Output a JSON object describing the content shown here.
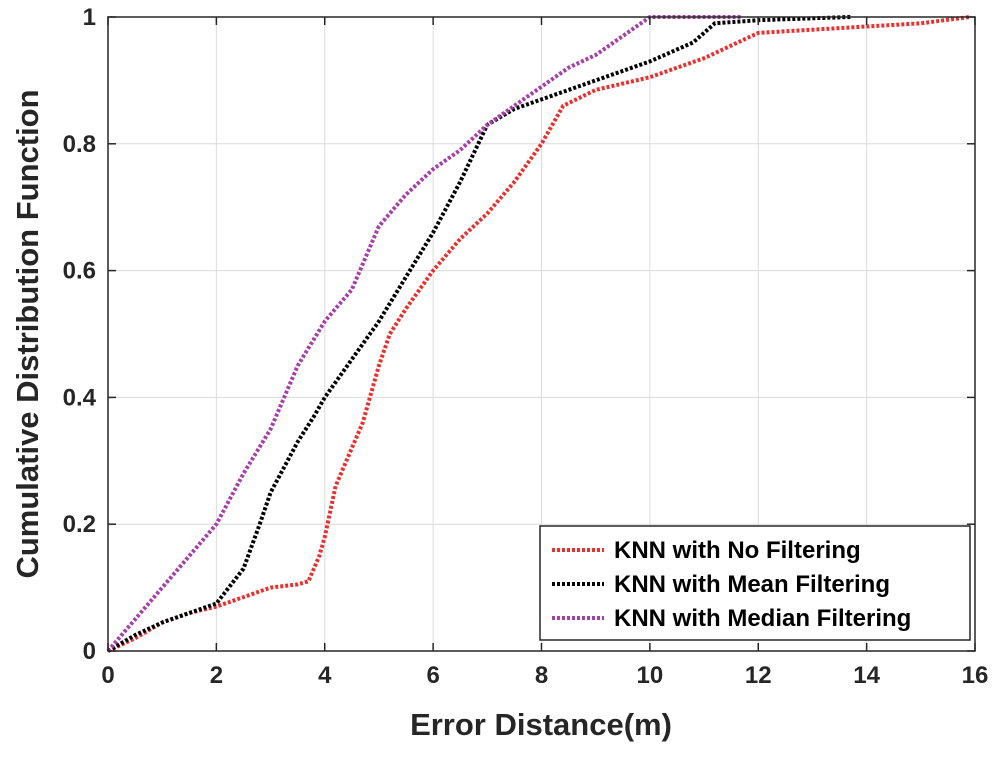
{
  "chart_data": {
    "type": "line",
    "title": "",
    "xlabel": "Error Distance(m)",
    "ylabel": "Cumulative Distribution Function",
    "xlim": [
      0,
      16
    ],
    "ylim": [
      0,
      1
    ],
    "xticks": [
      0,
      2,
      4,
      6,
      8,
      10,
      12,
      14,
      16
    ],
    "yticks": [
      0,
      0.2,
      0.4,
      0.6,
      0.8,
      1
    ],
    "xtick_labels": [
      "0",
      "2",
      "4",
      "6",
      "8",
      "10",
      "12",
      "14",
      "16"
    ],
    "ytick_labels": [
      "0",
      "0.2",
      "0.4",
      "0.6",
      "0.8",
      "1"
    ],
    "grid": true,
    "legend_position": "bottom-right",
    "series": [
      {
        "name": "KNN with No Filtering",
        "color": "#e8312f",
        "x": [
          0,
          0.5,
          1.0,
          1.5,
          2.0,
          2.5,
          3.0,
          3.5,
          3.7,
          3.9,
          4.0,
          4.2,
          4.4,
          4.7,
          5.0,
          5.2,
          5.5,
          6.0,
          6.5,
          7.0,
          7.5,
          8.0,
          8.4,
          9.0,
          10.0,
          11.0,
          12.0,
          13.0,
          14.0,
          15.0,
          15.9
        ],
        "y": [
          0,
          0.02,
          0.045,
          0.06,
          0.07,
          0.085,
          0.1,
          0.105,
          0.11,
          0.15,
          0.18,
          0.26,
          0.3,
          0.36,
          0.45,
          0.5,
          0.54,
          0.6,
          0.65,
          0.69,
          0.74,
          0.8,
          0.86,
          0.885,
          0.905,
          0.935,
          0.975,
          0.98,
          0.985,
          0.99,
          1.0
        ]
      },
      {
        "name": "KNN with Mean Filtering",
        "color": "#000000",
        "x": [
          0,
          0.5,
          1.0,
          1.5,
          2.0,
          2.5,
          2.8,
          3.0,
          3.5,
          3.8,
          4.0,
          4.5,
          5.0,
          5.5,
          6.0,
          6.5,
          7.0,
          7.5,
          8.0,
          9.0,
          10.0,
          10.8,
          11.2,
          12.0,
          13.0,
          13.7
        ],
        "y": [
          0,
          0.025,
          0.045,
          0.06,
          0.075,
          0.13,
          0.2,
          0.25,
          0.33,
          0.37,
          0.4,
          0.46,
          0.52,
          0.59,
          0.66,
          0.74,
          0.83,
          0.855,
          0.87,
          0.9,
          0.93,
          0.96,
          0.99,
          0.995,
          0.998,
          1.0
        ]
      },
      {
        "name": "KNN with Median Filtering",
        "color": "#a540a8",
        "x": [
          0,
          0.5,
          1.0,
          1.5,
          2.0,
          2.5,
          3.0,
          3.5,
          4.0,
          4.5,
          5.0,
          5.5,
          6.0,
          6.5,
          7.0,
          7.5,
          8.0,
          8.5,
          9.0,
          9.5,
          10.0,
          10.8,
          11.7
        ],
        "y": [
          0,
          0.05,
          0.1,
          0.15,
          0.2,
          0.28,
          0.35,
          0.45,
          0.52,
          0.57,
          0.67,
          0.72,
          0.76,
          0.79,
          0.83,
          0.86,
          0.89,
          0.92,
          0.94,
          0.97,
          1.0,
          1.0,
          1.0
        ]
      }
    ]
  }
}
